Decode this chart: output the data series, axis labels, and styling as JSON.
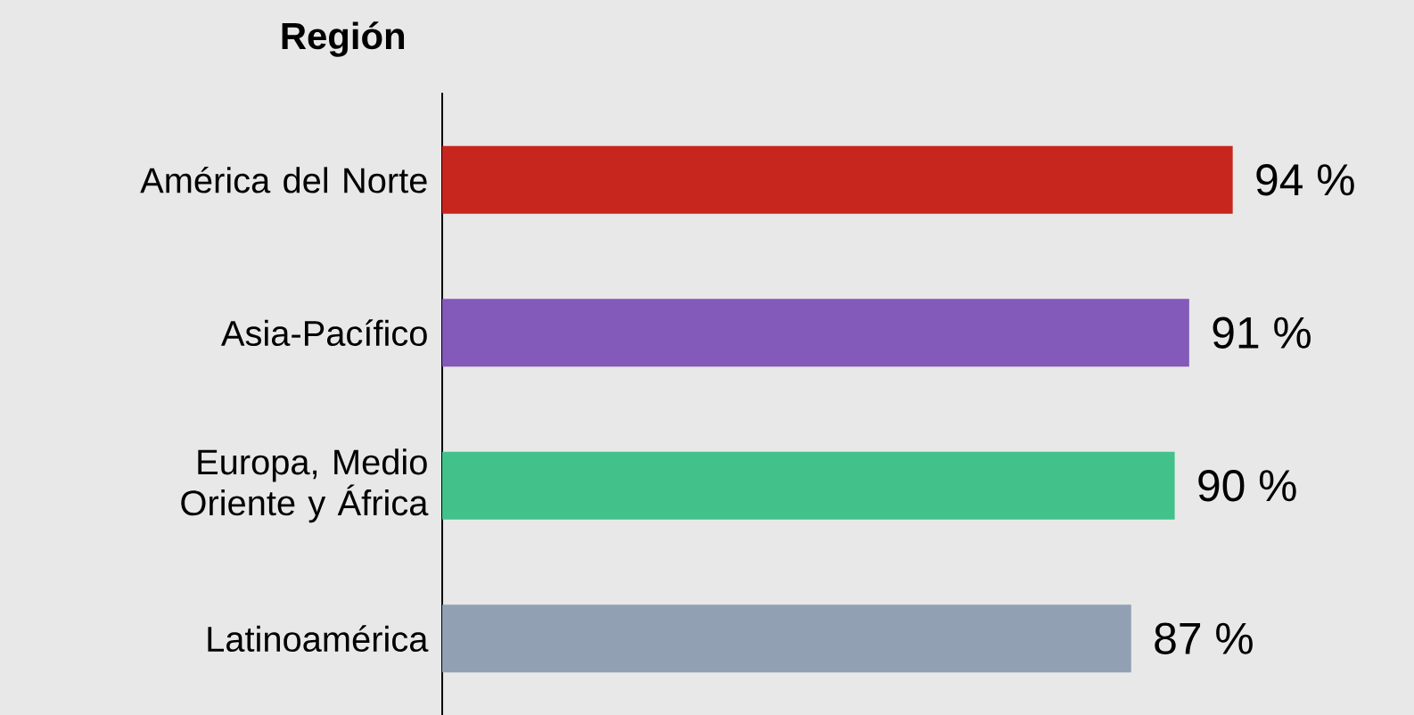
{
  "chart_data": {
    "type": "bar",
    "orientation": "horizontal",
    "ylabel": "Región",
    "categories": [
      "América del Norte",
      "Asia-Pacífico",
      "Europa, Medio Oriente y África",
      "Latinoamérica"
    ],
    "values": [
      94,
      91,
      90,
      87
    ],
    "value_labels": [
      "94 %",
      "91 %",
      "90 %",
      "87 %"
    ],
    "colors": [
      "#c6261e",
      "#8359b9",
      "#43c18a",
      "#91a1b3"
    ],
    "xlim": [
      39.5,
      106.5
    ]
  }
}
